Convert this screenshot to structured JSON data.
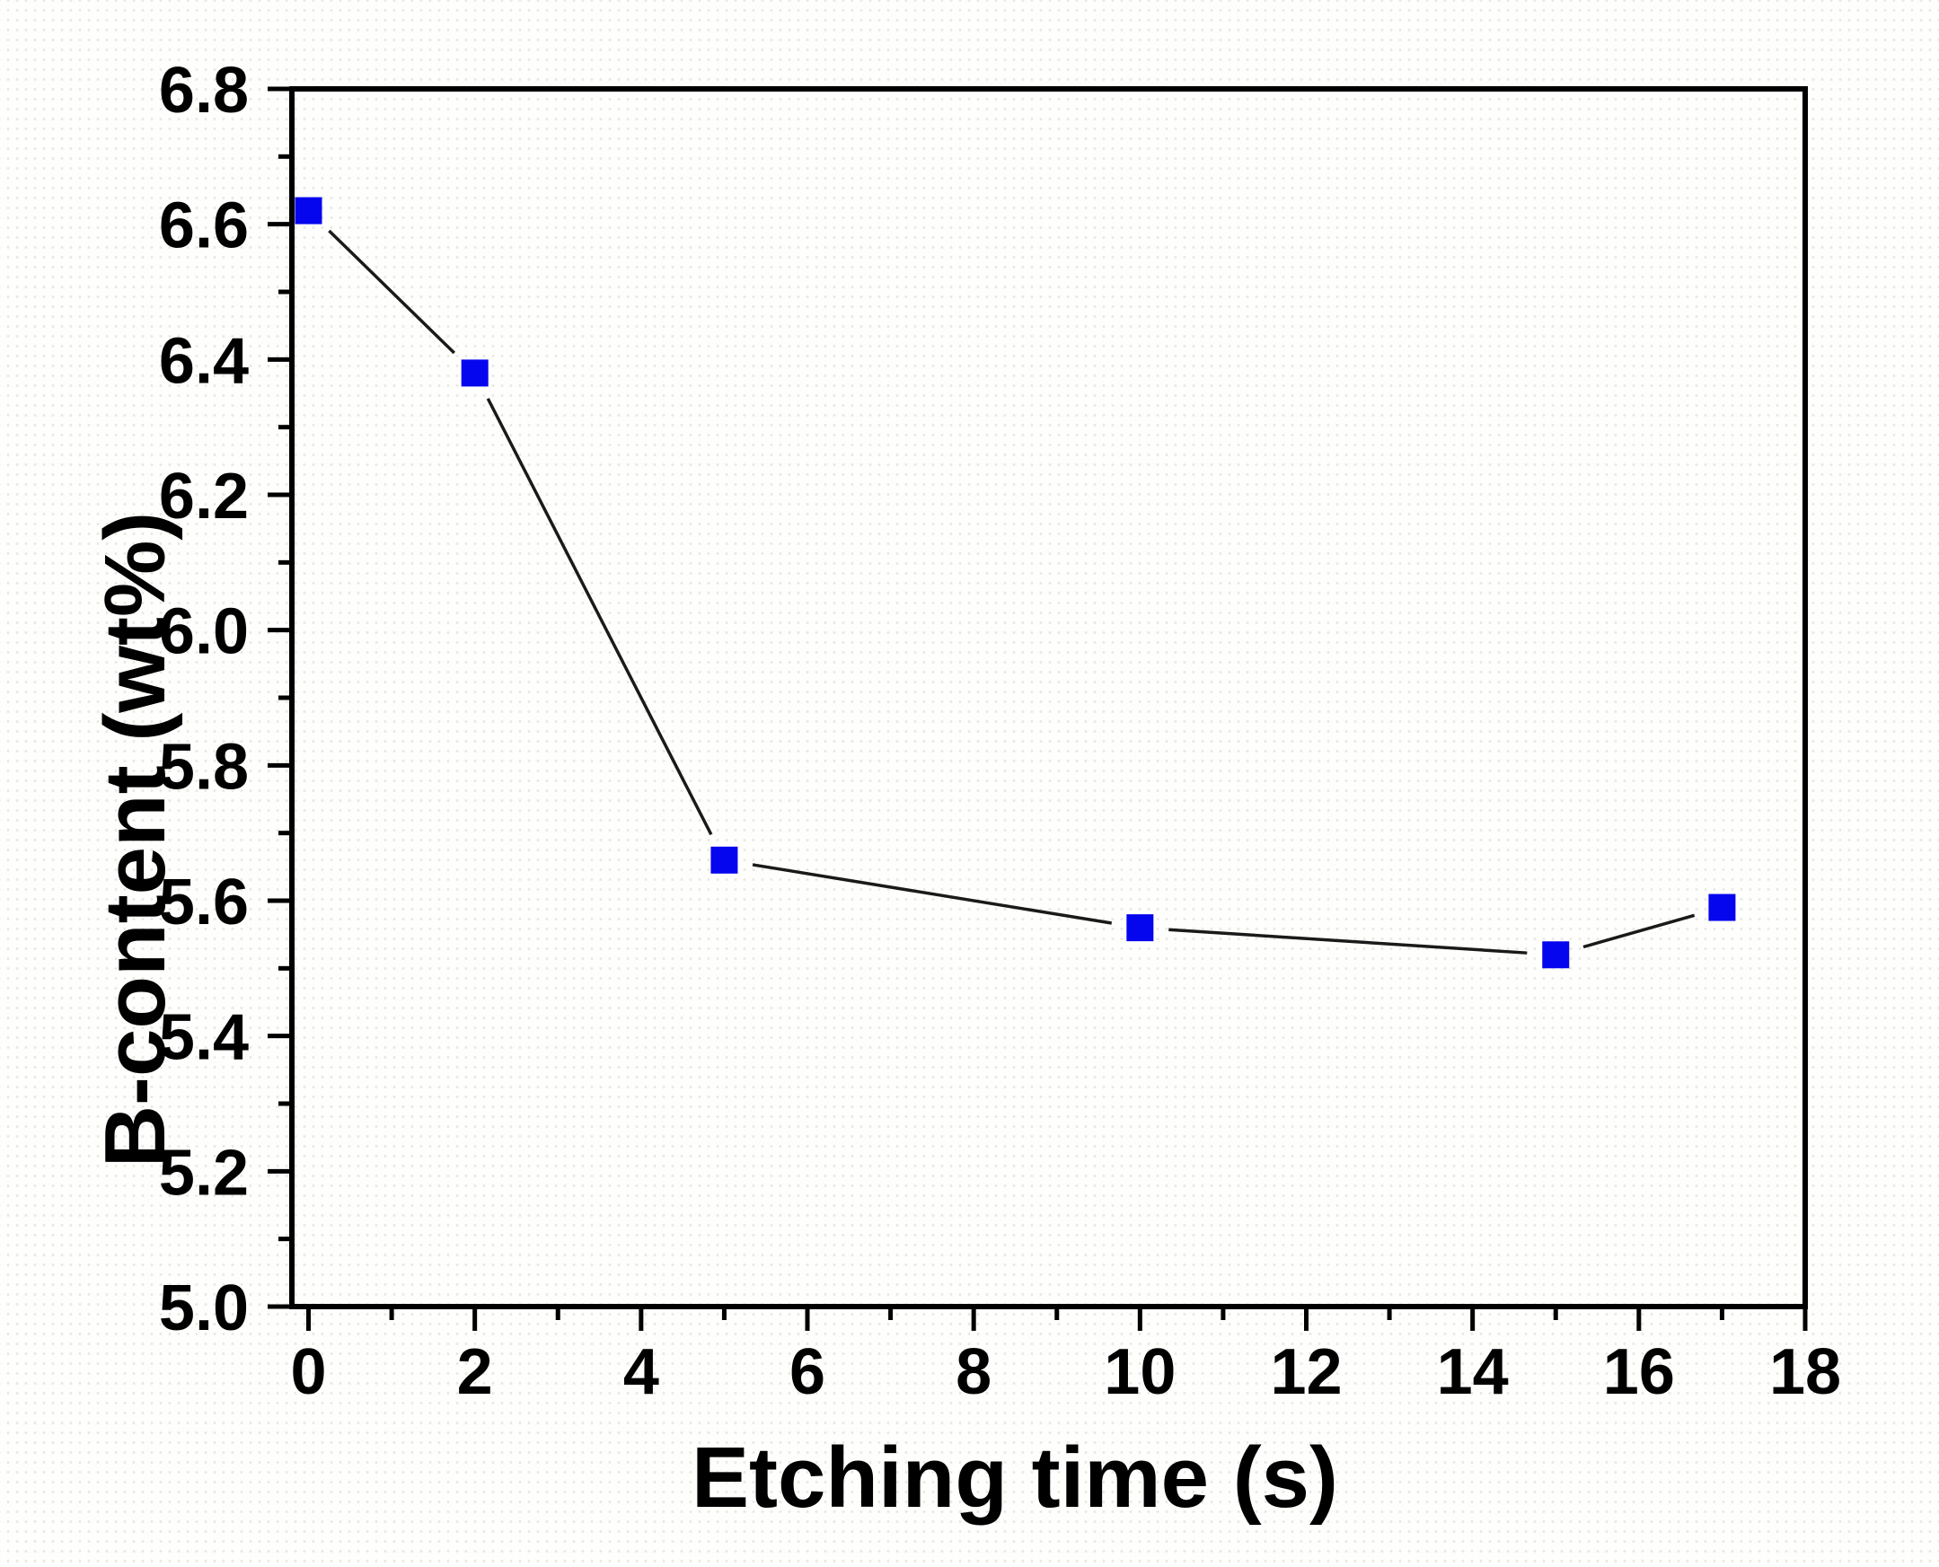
{
  "chart_data": {
    "type": "line",
    "title": "",
    "xlabel": "Etching time (s)",
    "ylabel": "B-content (wt%)",
    "series": [
      {
        "name": "B-content",
        "x": [
          0,
          2,
          5,
          10,
          15,
          17
        ],
        "y": [
          6.62,
          6.38,
          5.66,
          5.56,
          5.52,
          5.59
        ]
      }
    ],
    "xlim": [
      -0.2,
      18
    ],
    "ylim": [
      5.0,
      6.8
    ],
    "x_major_ticks": [
      0,
      2,
      4,
      6,
      8,
      10,
      12,
      14,
      16,
      18
    ],
    "x_major_tick_labels": [
      "0",
      "2",
      "4",
      "6",
      "8",
      "10",
      "12",
      "14",
      "16",
      "18"
    ],
    "x_minor_ticks": [
      1,
      3,
      5,
      7,
      9,
      11,
      13,
      15,
      17
    ],
    "y_major_ticks": [
      5.0,
      5.2,
      5.4,
      5.6,
      5.8,
      6.0,
      6.2,
      6.4,
      6.6,
      6.8
    ],
    "y_major_tick_labels": [
      "5.0",
      "5.2",
      "5.4",
      "5.6",
      "5.8",
      "6.0",
      "6.2",
      "6.4",
      "6.6",
      "6.8"
    ],
    "y_minor_ticks": [
      5.1,
      5.3,
      5.5,
      5.7,
      5.9,
      6.1,
      6.3,
      6.5,
      6.7
    ],
    "grid": false,
    "legend": "none",
    "colors": {
      "marker": "#0606ee",
      "line": "#1a1a1a",
      "axis": "#000000"
    }
  }
}
